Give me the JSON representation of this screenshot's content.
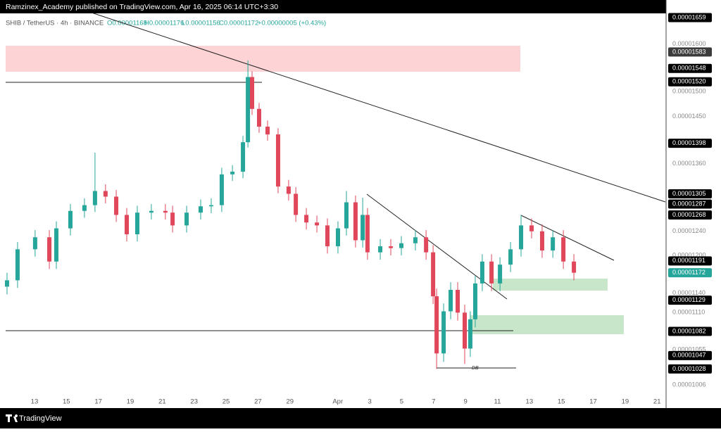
{
  "header": {
    "publisher": "Ramzinex_Academy published on TradingView.com, Apr 16, 2025 06:14 UTC+3:30",
    "symbol": "SHIB / TetherUS · 4h · BINANCE",
    "ohlc": [
      "O0.00001168",
      "H0.00001176",
      "L0.00001156",
      "C0.00001172",
      "+0.00000005 (+0.43%)"
    ]
  },
  "footer": {
    "brand": "TradingView"
  },
  "annotation": "DB",
  "chart_data": {
    "type": "candlestick",
    "log_scale": true,
    "up_color": "#26a69a",
    "down_color": "#e0475b",
    "xlim": [
      -2.16,
      39.52
    ],
    "xticks": [
      {
        "value": 0,
        "label": "13"
      },
      {
        "value": 2,
        "label": "15"
      },
      {
        "value": 4,
        "label": "17"
      },
      {
        "value": 6,
        "label": "19"
      },
      {
        "value": 8,
        "label": "21"
      },
      {
        "value": 10,
        "label": "23"
      },
      {
        "value": 12,
        "label": "25"
      },
      {
        "value": 14,
        "label": "27"
      },
      {
        "value": 16,
        "label": "29"
      },
      {
        "value": 19,
        "label": "Apr"
      },
      {
        "value": 21,
        "label": "3"
      },
      {
        "value": 23,
        "label": "5"
      },
      {
        "value": 25,
        "label": "7"
      },
      {
        "value": 27,
        "label": "9"
      },
      {
        "value": 29,
        "label": "11"
      },
      {
        "value": 31,
        "label": "13"
      },
      {
        "value": 33,
        "label": "15"
      },
      {
        "value": 35,
        "label": "17"
      },
      {
        "value": 37,
        "label": "19"
      },
      {
        "value": 39,
        "label": "21"
      }
    ],
    "ylim": [
      1.006e-05,
      1.659e-05
    ],
    "yticks": [
      {
        "value": 1.6e-05,
        "label": "0.00001600"
      },
      {
        "value": 1.5e-05,
        "label": "0.00001500"
      },
      {
        "value": 1.45e-05,
        "label": "0.00001450"
      },
      {
        "value": 1.36e-05,
        "label": "0.00001360"
      },
      {
        "value": 1.3e-05,
        "label": "0.00001300"
      },
      {
        "value": 1.24e-05,
        "label": "0.00001240"
      },
      {
        "value": 1.2e-05,
        "label": "0.00001200"
      },
      {
        "value": 1.14e-05,
        "label": "0.00001140"
      },
      {
        "value": 1.11e-05,
        "label": "0.00001110"
      },
      {
        "value": 1.055e-05
      },
      {
        "value": 1.006e-05
      }
    ],
    "price_labels": [
      {
        "value": 1.659e-05,
        "color": "#000000"
      },
      {
        "value": 1.583e-05,
        "color": "#3b3b3b"
      },
      {
        "value": 1.548e-05,
        "color": "#000000"
      },
      {
        "value": 1.52e-05,
        "label": "0.00001520",
        "color": "#000000"
      },
      {
        "value": 1.398e-05,
        "color": "#000000"
      },
      {
        "value": 1.305e-05,
        "color": "#000000"
      },
      {
        "value": 1.287e-05,
        "color": "#000000"
      },
      {
        "value": 1.268e-05,
        "color": "#000000"
      },
      {
        "value": 1.191e-05,
        "color": "#000000"
      },
      {
        "value": 1.172e-05,
        "color": "#26a69a"
      },
      {
        "value": 1.129e-05,
        "color": "#000000"
      },
      {
        "value": 1.082e-05,
        "color": "#000000"
      },
      {
        "value": 1.047e-05,
        "color": "#000000"
      },
      {
        "value": 1.028e-05,
        "color": "#000000"
      }
    ],
    "x": [
      -1.72,
      -1.06,
      0.04,
      0.93,
      1.37,
      2.25,
      3.13,
      3.79,
      4.45,
      5.12,
      5.78,
      6.44,
      7.32,
      8.2,
      8.65,
      9.53,
      10.41,
      11.07,
      11.73,
      12.4,
      13.06,
      13.37,
      13.63,
      14.07,
      14.6,
      15.26,
      15.92,
      16.37,
      17.03,
      17.69,
      18.35,
      19.01,
      19.54,
      20.11,
      20.56,
      20.86,
      21.66,
      22.32,
      22.98,
      23.86,
      24.53,
      24.97,
      25.19,
      25.63,
      26.07,
      26.51,
      26.95,
      27.3,
      27.61,
      28.05,
      28.63,
      29.16,
      29.82,
      30.48,
      31.14,
      31.8,
      32.47,
      33.13,
      33.79
    ],
    "open": [
      1.15e-05,
      1.16e-05,
      1.21e-05,
      1.23e-05,
      1.19e-05,
      1.245e-05,
      1.275e-05,
      1.285e-05,
      1.31e-05,
      1.3e-05,
      1.268e-05,
      1.235e-05,
      1.272e-05,
      1.275e-05,
      1.272e-05,
      1.25e-05,
      1.272e-05,
      1.283e-05,
      1.285e-05,
      1.34e-05,
      1.345e-05,
      1.4e-05,
      1.53e-05,
      1.465e-05,
      1.43e-05,
      1.415e-05,
      1.318e-05,
      1.305e-05,
      1.268e-05,
      1.255e-05,
      1.25e-05,
      1.215e-05,
      1.245e-05,
      1.29e-05,
      1.225e-05,
      1.268e-05,
      1.205e-05,
      1.215e-05,
      1.212e-05,
      1.22e-05,
      1.23e-05,
      1.205e-05,
      1.135e-05,
      1.05e-05,
      1.112e-05,
      1.145e-05,
      1.11e-05,
      1.057e-05,
      1.1e-05,
      1.155e-05,
      1.19e-05,
      1.155e-05,
      1.185e-05,
      1.21e-05,
      1.25e-05,
      1.24e-05,
      1.208e-05,
      1.23e-05,
      1.19e-05
    ],
    "high": [
      1.172e-05,
      1.222e-05,
      1.242e-05,
      1.242e-05,
      1.257e-05,
      1.287e-05,
      1.297e-05,
      1.38e-05,
      1.322e-05,
      1.312e-05,
      1.28e-05,
      1.284e-05,
      1.287e-05,
      1.287e-05,
      1.284e-05,
      1.284e-05,
      1.295e-05,
      1.297e-05,
      1.352e-05,
      1.357e-05,
      1.412e-05,
      1.565e-05,
      1.542e-05,
      1.477e-05,
      1.442e-05,
      1.427e-05,
      1.33e-05,
      1.317e-05,
      1.28e-05,
      1.267e-05,
      1.262e-05,
      1.257e-05,
      1.31e-05,
      1.302e-05,
      1.298e-05,
      1.28e-05,
      1.227e-05,
      1.227e-05,
      1.232e-05,
      1.242e-05,
      1.242e-05,
      1.217e-05,
      1.147e-05,
      1.124e-05,
      1.157e-05,
      1.157e-05,
      1.122e-05,
      1.112e-05,
      1.167e-05,
      1.202e-05,
      1.202e-05,
      1.197e-05,
      1.222e-05,
      1.268e-05,
      1.262e-05,
      1.252e-05,
      1.242e-05,
      1.242e-05,
      1.202e-05
    ],
    "low": [
      1.138e-05,
      1.148e-05,
      1.198e-05,
      1.178e-05,
      1.178e-05,
      1.233e-05,
      1.263e-05,
      1.273e-05,
      1.288e-05,
      1.256e-05,
      1.223e-05,
      1.223e-05,
      1.26e-05,
      1.26e-05,
      1.238e-05,
      1.238e-05,
      1.26e-05,
      1.271e-05,
      1.273e-05,
      1.328e-05,
      1.333e-05,
      1.39e-05,
      1.453e-05,
      1.418e-05,
      1.403e-05,
      1.306e-05,
      1.293e-05,
      1.256e-05,
      1.243e-05,
      1.238e-05,
      1.203e-05,
      1.203e-05,
      1.233e-05,
      1.213e-05,
      1.213e-05,
      1.193e-05,
      1.193e-05,
      1.2e-05,
      1.2e-05,
      1.208e-05,
      1.193e-05,
      1.123e-05,
      1.028e-05,
      1.038e-05,
      1.1e-05,
      1.098e-05,
      1.035e-05,
      1.045e-05,
      1.088e-05,
      1.143e-05,
      1.143e-05,
      1.143e-05,
      1.173e-05,
      1.198e-05,
      1.228e-05,
      1.196e-05,
      1.196e-05,
      1.178e-05,
      1.16e-05
    ],
    "close": [
      1.16e-05,
      1.21e-05,
      1.23e-05,
      1.19e-05,
      1.245e-05,
      1.275e-05,
      1.285e-05,
      1.31e-05,
      1.3e-05,
      1.268e-05,
      1.235e-05,
      1.272e-05,
      1.275e-05,
      1.272e-05,
      1.25e-05,
      1.272e-05,
      1.283e-05,
      1.285e-05,
      1.34e-05,
      1.345e-05,
      1.4e-05,
      1.53e-05,
      1.465e-05,
      1.43e-05,
      1.415e-05,
      1.318e-05,
      1.305e-05,
      1.268e-05,
      1.255e-05,
      1.25e-05,
      1.215e-05,
      1.245e-05,
      1.29e-05,
      1.225e-05,
      1.268e-05,
      1.205e-05,
      1.215e-05,
      1.212e-05,
      1.22e-05,
      1.23e-05,
      1.205e-05,
      1.135e-05,
      1.05e-05,
      1.112e-05,
      1.145e-05,
      1.11e-05,
      1.057e-05,
      1.1e-05,
      1.155e-05,
      1.19e-05,
      1.155e-05,
      1.185e-05,
      1.21e-05,
      1.25e-05,
      1.24e-05,
      1.208e-05,
      1.23e-05,
      1.19e-05,
      1.172e-05
    ]
  }
}
